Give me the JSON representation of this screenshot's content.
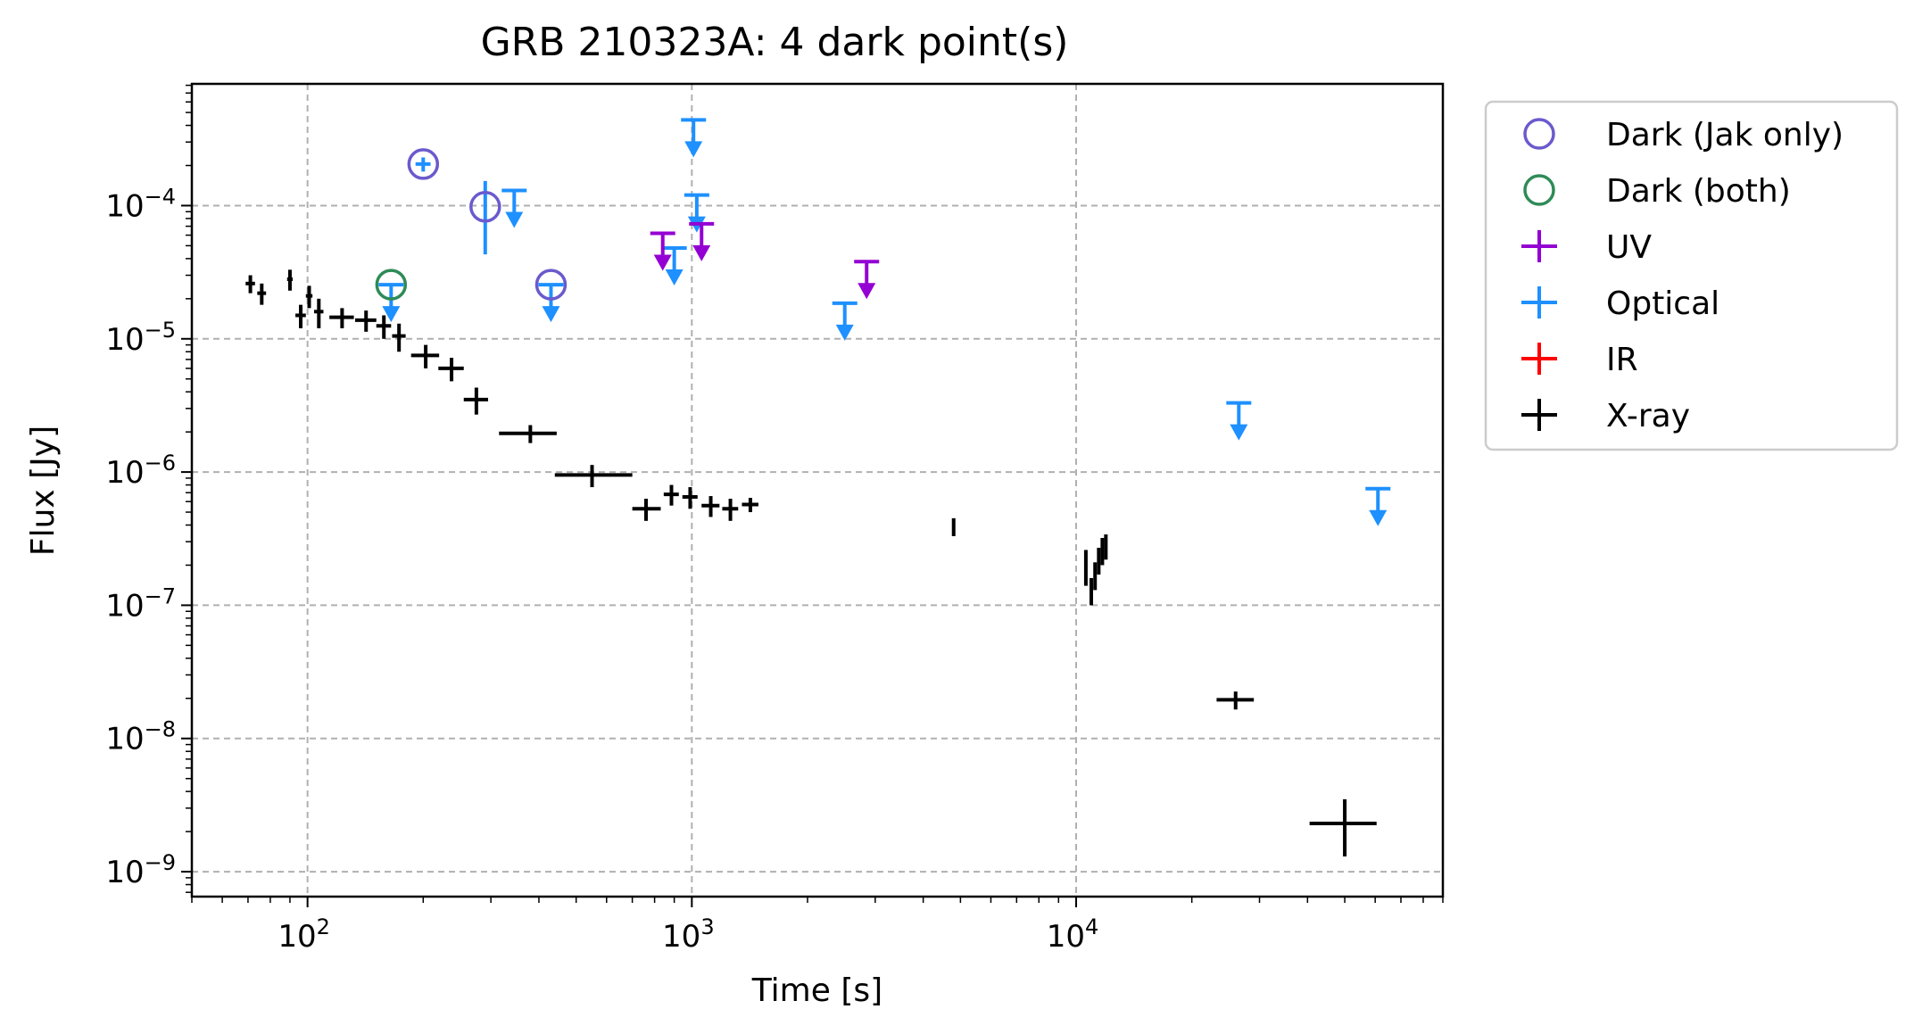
{
  "chart_data": {
    "type": "scatter",
    "title": "GRB 210323A: 4 dark point(s)",
    "xlabel": "Time [s]",
    "ylabel": "Flux [Jy]",
    "xscale": "log",
    "yscale": "log",
    "xlim": [
      50,
      90000
    ],
    "ylim": [
      6.5e-10,
      0.00082
    ],
    "grid": true,
    "legend_position": "outside-right",
    "x_ticks": [
      {
        "value": 100,
        "base": "10",
        "exp": "2"
      },
      {
        "value": 1000,
        "base": "10",
        "exp": "3"
      },
      {
        "value": 10000,
        "base": "10",
        "exp": "4"
      }
    ],
    "y_ticks": [
      {
        "value": 1e-09,
        "base": "10",
        "exp": "−9"
      },
      {
        "value": 1e-08,
        "base": "10",
        "exp": "−8"
      },
      {
        "value": 1e-07,
        "base": "10",
        "exp": "−7"
      },
      {
        "value": 1e-06,
        "base": "10",
        "exp": "−6"
      },
      {
        "value": 1e-05,
        "base": "10",
        "exp": "−5"
      },
      {
        "value": 0.0001,
        "base": "10",
        "exp": "−4"
      }
    ],
    "legend": [
      {
        "label": "Dark (Jak only)",
        "marker": "circle",
        "color": "#6a5acd"
      },
      {
        "label": "Dark (both)",
        "marker": "circle",
        "color": "#2e8b57"
      },
      {
        "label": "UV",
        "marker": "errorbar",
        "color": "#9400d3"
      },
      {
        "label": "Optical",
        "marker": "errorbar",
        "color": "#1e90ff"
      },
      {
        "label": "IR",
        "marker": "errorbar",
        "color": "#ff0000"
      },
      {
        "label": "X-ray",
        "marker": "errorbar",
        "color": "#000000"
      }
    ],
    "series": [
      {
        "name": "X-ray",
        "color": "#000000",
        "points": [
          {
            "x": 71,
            "y": 2.6e-05,
            "xerr": [
              2,
              2
            ],
            "yerr": [
              4e-06,
              4e-06
            ]
          },
          {
            "x": 76,
            "y": 2.2e-05,
            "xerr": [
              2,
              2
            ],
            "yerr": [
              4e-06,
              4e-06
            ]
          },
          {
            "x": 90,
            "y": 2.8e-05,
            "xerr": [
              1.5,
              1.5
            ],
            "yerr": [
              5e-06,
              5e-06
            ]
          },
          {
            "x": 96,
            "y": 1.5e-05,
            "xerr": [
              3,
              3
            ],
            "yerr": [
              3e-06,
              3e-06
            ]
          },
          {
            "x": 101,
            "y": 2.1e-05,
            "xerr": [
              2,
              2
            ],
            "yerr": [
              4e-06,
              4e-06
            ]
          },
          {
            "x": 107,
            "y": 1.6e-05,
            "xerr": [
              3,
              3
            ],
            "yerr": [
              4e-06,
              4e-06
            ]
          },
          {
            "x": 123,
            "y": 1.45e-05,
            "xerr": [
              9,
              9
            ],
            "yerr": [
              2.5e-06,
              2.5e-06
            ]
          },
          {
            "x": 142,
            "y": 1.38e-05,
            "xerr": [
              9,
              9
            ],
            "yerr": [
              2.5e-06,
              2.5e-06
            ]
          },
          {
            "x": 158,
            "y": 1.25e-05,
            "xerr": [
              7,
              7
            ],
            "yerr": [
              2.5e-06,
              2.5e-06
            ]
          },
          {
            "x": 173,
            "y": 1.05e-05,
            "xerr": [
              7,
              7
            ],
            "yerr": [
              2.5e-06,
              2.5e-06
            ]
          },
          {
            "x": 203,
            "y": 7.5e-06,
            "xerr": [
              17,
              17
            ],
            "yerr": [
              1.5e-06,
              1.5e-06
            ]
          },
          {
            "x": 237,
            "y": 6e-06,
            "xerr": [
              18,
              18
            ],
            "yerr": [
              1.2e-06,
              1.2e-06
            ]
          },
          {
            "x": 275,
            "y": 3.5e-06,
            "xerr": [
              20,
              20
            ],
            "yerr": [
              8e-07,
              8e-07
            ]
          },
          {
            "x": 380,
            "y": 1.95e-06,
            "xerr": [
              65,
              65
            ],
            "yerr": [
              3e-07,
              3e-07
            ]
          },
          {
            "x": 550,
            "y": 9.5e-07,
            "xerr": [
              110,
              150
            ],
            "yerr": [
              1.8e-07,
              1.8e-07
            ]
          },
          {
            "x": 760,
            "y": 5.3e-07,
            "xerr": [
              60,
              70
            ],
            "yerr": [
              1e-07,
              1e-07
            ]
          },
          {
            "x": 885,
            "y": 6.8e-07,
            "xerr": [
              40,
              40
            ],
            "yerr": [
              1.2e-07,
              1.2e-07
            ]
          },
          {
            "x": 990,
            "y": 6.5e-07,
            "xerr": [
              45,
              45
            ],
            "yerr": [
              1.2e-07,
              1.2e-07
            ]
          },
          {
            "x": 1120,
            "y": 5.6e-07,
            "xerr": [
              60,
              60
            ],
            "yerr": [
              1e-07,
              1e-07
            ]
          },
          {
            "x": 1260,
            "y": 5.3e-07,
            "xerr": [
              60,
              60
            ],
            "yerr": [
              1e-07,
              1e-07
            ]
          },
          {
            "x": 1420,
            "y": 5.7e-07,
            "xerr": [
              70,
              70
            ],
            "yerr": [
              7e-08,
              7e-08
            ]
          },
          {
            "x": 4800,
            "y": 3.9e-07,
            "xerr": [
              40,
              40
            ],
            "yerr": [
              6e-08,
              6e-08
            ]
          },
          {
            "x": 10600,
            "y": 2e-07,
            "xerr": [
              80,
              80
            ],
            "yerr": [
              6e-08,
              6e-08
            ]
          },
          {
            "x": 10950,
            "y": 1.3e-07,
            "xerr": [
              80,
              80
            ],
            "yerr": [
              3e-08,
              3e-08
            ]
          },
          {
            "x": 11200,
            "y": 1.7e-07,
            "xerr": [
              80,
              80
            ],
            "yerr": [
              4e-08,
              4e-08
            ]
          },
          {
            "x": 11450,
            "y": 2.2e-07,
            "xerr": [
              80,
              80
            ],
            "yerr": [
              5e-08,
              5e-08
            ]
          },
          {
            "x": 11700,
            "y": 2.6e-07,
            "xerr": [
              80,
              80
            ],
            "yerr": [
              6e-08,
              6e-08
            ]
          },
          {
            "x": 11950,
            "y": 2.8e-07,
            "xerr": [
              80,
              80
            ],
            "yerr": [
              6e-08,
              6e-08
            ]
          },
          {
            "x": 26000,
            "y": 1.95e-08,
            "xerr": [
              2800,
              3000
            ],
            "yerr": [
              3e-09,
              3e-09
            ]
          },
          {
            "x": 50000,
            "y": 2.3e-09,
            "xerr": [
              9500,
              10500
            ],
            "yerr": [
              1e-09,
              1.2e-09
            ]
          }
        ]
      },
      {
        "name": "Optical",
        "color": "#1e90ff",
        "points": [
          {
            "x": 200,
            "y": 0.000205,
            "xerr": [
              9,
              9
            ],
            "yerr": [
              2.5e-05,
              2.5e-05
            ]
          },
          {
            "x": 290,
            "y": 9.8e-05,
            "xerr": [
              0,
              0
            ],
            "yerr": [
              5.5e-05,
              5.5e-05
            ]
          }
        ],
        "upper_limits": [
          {
            "x": 165,
            "y": 2.55e-05
          },
          {
            "x": 430,
            "y": 2.55e-05
          },
          {
            "x": 345,
            "y": 0.00013
          },
          {
            "x": 1010,
            "y": 0.00044
          },
          {
            "x": 1030,
            "y": 0.00012
          },
          {
            "x": 900,
            "y": 4.8e-05
          },
          {
            "x": 2500,
            "y": 1.85e-05
          },
          {
            "x": 26500,
            "y": 3.3e-06
          },
          {
            "x": 61000,
            "y": 7.5e-07
          }
        ]
      },
      {
        "name": "UV",
        "color": "#9400d3",
        "points": [],
        "upper_limits": [
          {
            "x": 840,
            "y": 6.2e-05
          },
          {
            "x": 1060,
            "y": 7.3e-05
          },
          {
            "x": 2850,
            "y": 3.8e-05
          }
        ]
      },
      {
        "name": "Dark (Jak only)",
        "color": "#6a5acd",
        "points": [
          {
            "x": 200,
            "y": 0.000205
          },
          {
            "x": 290,
            "y": 9.8e-05
          },
          {
            "x": 430,
            "y": 2.55e-05
          }
        ]
      },
      {
        "name": "Dark (both)",
        "color": "#2e8b57",
        "points": [
          {
            "x": 165,
            "y": 2.55e-05
          }
        ]
      }
    ]
  }
}
